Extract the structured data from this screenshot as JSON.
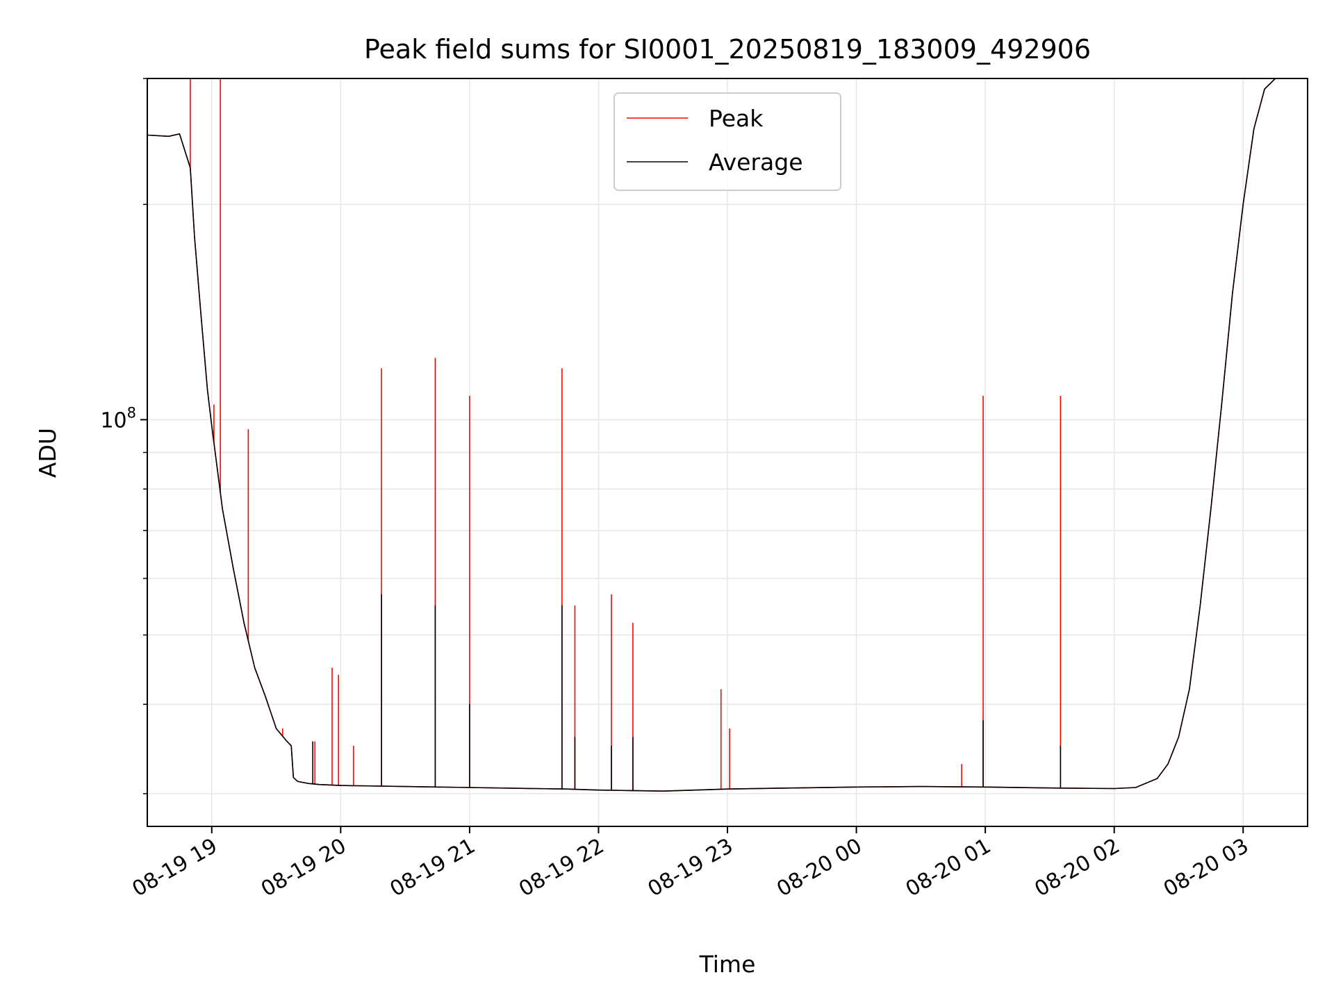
{
  "chart_data": {
    "type": "line",
    "title": "Peak field sums for SI0001_20250819_183009_492906",
    "xlabel": "Time",
    "ylabel": "ADU",
    "y_scale": "log",
    "grid": true,
    "legend_placement": "top-center",
    "xlim": [
      "2025-08-19 18:30",
      "2025-08-20 03:30"
    ],
    "ylim": [
      27000000,
      300000000
    ],
    "x_ticks": [
      {
        "t": "2025-08-19 19:00",
        "label": "08-19 19"
      },
      {
        "t": "2025-08-19 20:00",
        "label": "08-19 20"
      },
      {
        "t": "2025-08-19 21:00",
        "label": "08-19 21"
      },
      {
        "t": "2025-08-19 22:00",
        "label": "08-19 22"
      },
      {
        "t": "2025-08-19 23:00",
        "label": "08-19 23"
      },
      {
        "t": "2025-08-20 00:00",
        "label": "08-20 00"
      },
      {
        "t": "2025-08-20 01:00",
        "label": "08-20 01"
      },
      {
        "t": "2025-08-20 02:00",
        "label": "08-20 02"
      },
      {
        "t": "2025-08-20 03:00",
        "label": "08-20 03"
      }
    ],
    "y_ticks": [
      {
        "value": 100000000,
        "base": "10",
        "exp": "8"
      }
    ],
    "series": [
      {
        "name": "Average",
        "color": "#000000",
        "points": [
          [
            "2025-08-19 18:30",
            250000000
          ],
          [
            "2025-08-19 18:40",
            249000000
          ],
          [
            "2025-08-19 18:45",
            251000000
          ],
          [
            "2025-08-19 18:50",
            225000000
          ],
          [
            "2025-08-19 18:52",
            180000000
          ],
          [
            "2025-08-19 18:55",
            140000000
          ],
          [
            "2025-08-19 18:58",
            110000000
          ],
          [
            "2025-08-19 19:00",
            98000000
          ],
          [
            "2025-08-19 19:05",
            75000000
          ],
          [
            "2025-08-19 19:10",
            62000000
          ],
          [
            "2025-08-19 19:15",
            52000000
          ],
          [
            "2025-08-19 19:20",
            45000000
          ],
          [
            "2025-08-19 19:25",
            41000000
          ],
          [
            "2025-08-19 19:30",
            37000000
          ],
          [
            "2025-08-19 19:35",
            35500000
          ],
          [
            "2025-08-19 19:37",
            35000000
          ],
          [
            "2025-08-19 19:38",
            31600000
          ],
          [
            "2025-08-19 19:40",
            31200000
          ],
          [
            "2025-08-19 19:45",
            31000000
          ],
          [
            "2025-08-19 19:50",
            30900000
          ],
          [
            "2025-08-19 20:00",
            30800000
          ],
          [
            "2025-08-19 20:30",
            30700000
          ],
          [
            "2025-08-19 21:00",
            30600000
          ],
          [
            "2025-08-19 21:30",
            30500000
          ],
          [
            "2025-08-19 21:45",
            30450000
          ],
          [
            "2025-08-19 22:00",
            30350000
          ],
          [
            "2025-08-19 22:15",
            30300000
          ],
          [
            "2025-08-19 22:30",
            30250000
          ],
          [
            "2025-08-19 22:45",
            30350000
          ],
          [
            "2025-08-19 23:00",
            30450000
          ],
          [
            "2025-08-19 23:30",
            30550000
          ],
          [
            "2025-08-20 00:00",
            30650000
          ],
          [
            "2025-08-20 00:30",
            30700000
          ],
          [
            "2025-08-20 01:00",
            30650000
          ],
          [
            "2025-08-20 01:30",
            30550000
          ],
          [
            "2025-08-20 02:00",
            30500000
          ],
          [
            "2025-08-20 02:10",
            30600000
          ],
          [
            "2025-08-20 02:20",
            31500000
          ],
          [
            "2025-08-20 02:25",
            33000000
          ],
          [
            "2025-08-20 02:30",
            36000000
          ],
          [
            "2025-08-20 02:35",
            42000000
          ],
          [
            "2025-08-20 02:40",
            55000000
          ],
          [
            "2025-08-20 02:45",
            75000000
          ],
          [
            "2025-08-20 02:50",
            105000000
          ],
          [
            "2025-08-20 02:55",
            150000000
          ],
          [
            "2025-08-20 03:00",
            200000000
          ],
          [
            "2025-08-20 03:05",
            255000000
          ],
          [
            "2025-08-20 03:10",
            290000000
          ],
          [
            "2025-08-20 03:15",
            300000000
          ],
          [
            "2025-08-20 03:30",
            300000000
          ]
        ],
        "spikes": [
          [
            "2025-08-19 20:19",
            57000000
          ],
          [
            "2025-08-19 20:44",
            55000000
          ],
          [
            "2025-08-19 21:00",
            40000000
          ],
          [
            "2025-08-19 21:43",
            55000000
          ],
          [
            "2025-08-19 21:49",
            36000000
          ],
          [
            "2025-08-19 22:06",
            35000000
          ],
          [
            "2025-08-19 22:16",
            36000000
          ],
          [
            "2025-08-20 00:59",
            38000000
          ],
          [
            "2025-08-20 01:35",
            35000000
          ],
          [
            "2025-08-19 19:47",
            35500000
          ]
        ]
      },
      {
        "name": "Peak",
        "color": "#ff0000",
        "points": [
          [
            "2025-08-19 18:30",
            250000000
          ],
          [
            "2025-08-19 18:40",
            249000000
          ],
          [
            "2025-08-19 18:45",
            251000000
          ],
          [
            "2025-08-19 18:50",
            225000000
          ],
          [
            "2025-08-19 18:52",
            180000000
          ],
          [
            "2025-08-19 18:55",
            140000000
          ],
          [
            "2025-08-19 18:58",
            110000000
          ],
          [
            "2025-08-19 19:00",
            98000000
          ],
          [
            "2025-08-19 19:05",
            75000000
          ],
          [
            "2025-08-19 19:10",
            62000000
          ],
          [
            "2025-08-19 19:15",
            52000000
          ],
          [
            "2025-08-19 19:20",
            45000000
          ],
          [
            "2025-08-19 19:25",
            41000000
          ],
          [
            "2025-08-19 19:30",
            37000000
          ],
          [
            "2025-08-19 19:35",
            35500000
          ],
          [
            "2025-08-19 19:37",
            35000000
          ],
          [
            "2025-08-19 19:38",
            31600000
          ],
          [
            "2025-08-19 19:40",
            31200000
          ],
          [
            "2025-08-19 19:45",
            31000000
          ],
          [
            "2025-08-19 19:50",
            30900000
          ],
          [
            "2025-08-19 20:00",
            30800000
          ],
          [
            "2025-08-19 20:30",
            30700000
          ],
          [
            "2025-08-19 21:00",
            30600000
          ],
          [
            "2025-08-19 21:30",
            30500000
          ],
          [
            "2025-08-19 21:45",
            30450000
          ],
          [
            "2025-08-19 22:00",
            30350000
          ],
          [
            "2025-08-19 22:15",
            30300000
          ],
          [
            "2025-08-19 22:30",
            30250000
          ],
          [
            "2025-08-19 22:45",
            30350000
          ],
          [
            "2025-08-19 23:00",
            30450000
          ],
          [
            "2025-08-19 23:30",
            30550000
          ],
          [
            "2025-08-20 00:00",
            30650000
          ],
          [
            "2025-08-20 00:30",
            30700000
          ],
          [
            "2025-08-20 01:00",
            30650000
          ],
          [
            "2025-08-20 01:30",
            30550000
          ],
          [
            "2025-08-20 02:00",
            30500000
          ],
          [
            "2025-08-20 02:10",
            30600000
          ],
          [
            "2025-08-20 02:20",
            31500000
          ],
          [
            "2025-08-20 02:25",
            33000000
          ],
          [
            "2025-08-20 02:30",
            36000000
          ],
          [
            "2025-08-20 02:35",
            42000000
          ],
          [
            "2025-08-20 02:40",
            55000000
          ],
          [
            "2025-08-20 02:45",
            75000000
          ],
          [
            "2025-08-20 02:50",
            105000000
          ],
          [
            "2025-08-20 02:55",
            150000000
          ],
          [
            "2025-08-20 03:00",
            200000000
          ],
          [
            "2025-08-20 03:05",
            255000000
          ],
          [
            "2025-08-20 03:10",
            290000000
          ],
          [
            "2025-08-20 03:15",
            300000000
          ],
          [
            "2025-08-20 03:30",
            300000000
          ]
        ],
        "spikes": [
          [
            "2025-08-19 18:50",
            300000000
          ],
          [
            "2025-08-19 19:04",
            300000000
          ],
          [
            "2025-08-19 19:01",
            105000000
          ],
          [
            "2025-08-19 19:17",
            97000000
          ],
          [
            "2025-08-19 19:56",
            45000000
          ],
          [
            "2025-08-19 19:59",
            44000000
          ],
          [
            "2025-08-19 20:19",
            118000000
          ],
          [
            "2025-08-19 20:44",
            122000000
          ],
          [
            "2025-08-19 21:00",
            108000000
          ],
          [
            "2025-08-19 21:43",
            118000000
          ],
          [
            "2025-08-19 21:49",
            55000000
          ],
          [
            "2025-08-19 22:06",
            57000000
          ],
          [
            "2025-08-19 22:16",
            52000000
          ],
          [
            "2025-08-19 22:57",
            42000000
          ],
          [
            "2025-08-19 23:01",
            37000000
          ],
          [
            "2025-08-20 00:59",
            108000000
          ],
          [
            "2025-08-20 01:35",
            108000000
          ],
          [
            "2025-08-20 00:49",
            33000000
          ],
          [
            "2025-08-19 19:33",
            37000000
          ],
          [
            "2025-08-19 19:48",
            35500000
          ],
          [
            "2025-08-19 20:06",
            35000000
          ]
        ]
      }
    ]
  }
}
